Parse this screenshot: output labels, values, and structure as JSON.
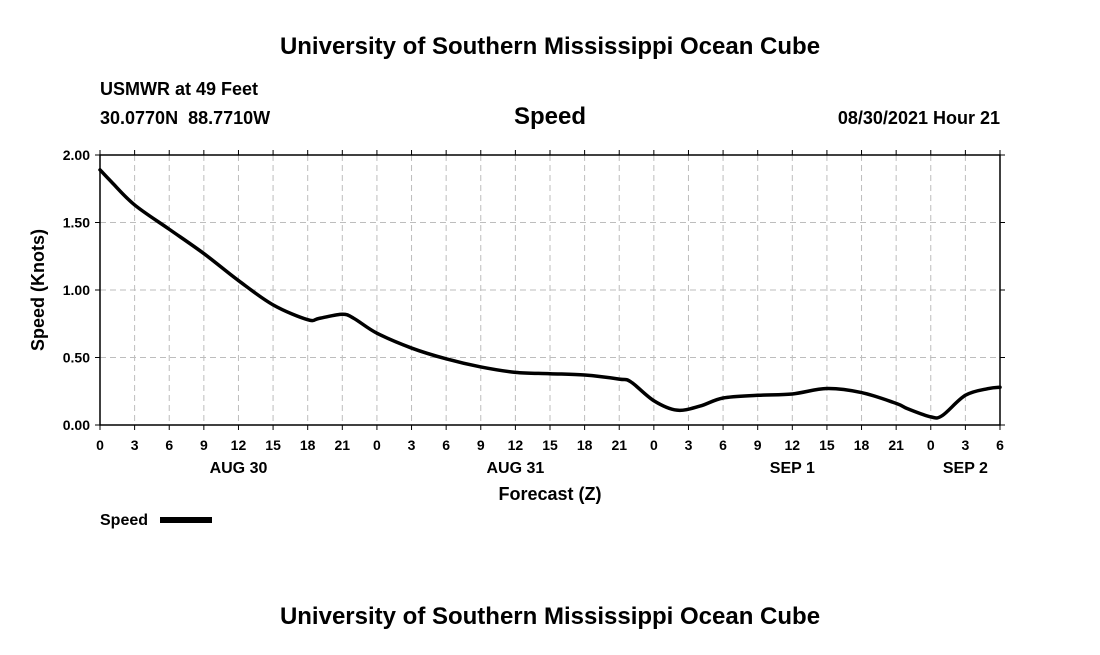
{
  "header": {
    "title": "University of Southern Mississippi Ocean Cube",
    "station": "USMWR at 49 Feet",
    "coords": "30.0770N  88.7710W",
    "parameter": "Speed",
    "datetime": "08/30/2021 Hour 21"
  },
  "footer": {
    "title": "University of Southern Mississippi Ocean Cube"
  },
  "chart_data": {
    "type": "line",
    "xlabel": "Forecast (Z)",
    "ylabel": "Speed (Knots)",
    "ylim": [
      0,
      2
    ],
    "yticks": [
      "0.00",
      "0.50",
      "1.00",
      "1.50",
      "2.00"
    ],
    "xlim_hours": [
      0,
      78
    ],
    "xtick_labels": [
      "0",
      "3",
      "6",
      "9",
      "12",
      "15",
      "18",
      "21",
      "0",
      "3",
      "6",
      "9",
      "12",
      "15",
      "18",
      "21",
      "0",
      "3",
      "6",
      "9",
      "12",
      "15",
      "18",
      "21",
      "0",
      "3",
      "6"
    ],
    "date_labels": [
      {
        "label": "AUG 30",
        "hour": 12
      },
      {
        "label": "AUG 31",
        "hour": 36
      },
      {
        "label": "SEP 1",
        "hour": 60
      },
      {
        "label": "SEP 2",
        "hour": 75
      }
    ],
    "grid": true,
    "legend": {
      "position": "bottom-left",
      "entries": [
        "Speed"
      ]
    },
    "series": [
      {
        "name": "Speed",
        "color": "#000000",
        "x": [
          0,
          1,
          3,
          6,
          9,
          12,
          15,
          18,
          19,
          21,
          22,
          24,
          27,
          30,
          33,
          36,
          39,
          42,
          45,
          46,
          48,
          50,
          52,
          54,
          57,
          60,
          63,
          66,
          69,
          70,
          72,
          73,
          75,
          77,
          78
        ],
        "values": [
          1.89,
          1.8,
          1.63,
          1.45,
          1.27,
          1.07,
          0.89,
          0.78,
          0.79,
          0.82,
          0.79,
          0.68,
          0.57,
          0.49,
          0.43,
          0.39,
          0.38,
          0.37,
          0.34,
          0.32,
          0.18,
          0.11,
          0.14,
          0.2,
          0.22,
          0.23,
          0.27,
          0.24,
          0.16,
          0.12,
          0.06,
          0.07,
          0.22,
          0.27,
          0.28
        ]
      }
    ]
  }
}
